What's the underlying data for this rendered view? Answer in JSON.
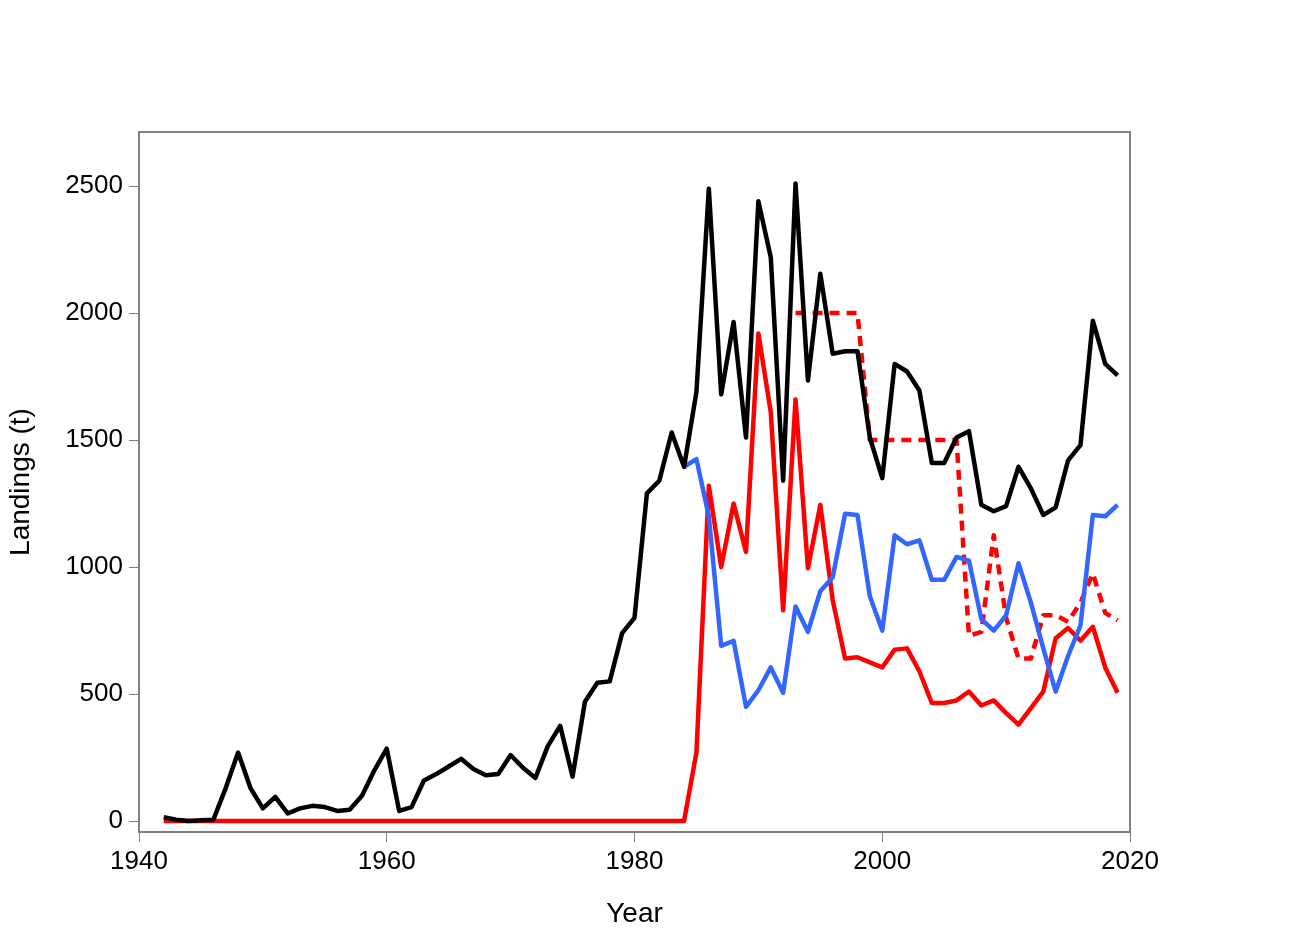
{
  "chart_data": {
    "type": "line",
    "xlabel": "Year",
    "ylabel": "Landings (t)",
    "xlim": [
      1940,
      2020
    ],
    "xticks": [
      1940,
      1960,
      1980,
      2000,
      2020
    ],
    "ylim": [
      -43,
      2713
    ],
    "yticks": [
      0,
      500,
      1000,
      1500,
      2000,
      2500
    ],
    "grid": false,
    "legend": false,
    "marker": "none",
    "x": [
      1942,
      1943,
      1944,
      1945,
      1946,
      1947,
      1948,
      1949,
      1950,
      1951,
      1952,
      1953,
      1954,
      1955,
      1956,
      1957,
      1958,
      1959,
      1960,
      1961,
      1962,
      1963,
      1964,
      1965,
      1966,
      1967,
      1968,
      1969,
      1970,
      1971,
      1972,
      1973,
      1974,
      1975,
      1976,
      1977,
      1978,
      1979,
      1980,
      1981,
      1982,
      1983,
      1984,
      1985,
      1986,
      1987,
      1988,
      1989,
      1990,
      1991,
      1992,
      1993,
      1994,
      1995,
      1996,
      1997,
      1998,
      1999,
      2000,
      2001,
      2002,
      2003,
      2004,
      2005,
      2006,
      2007,
      2008,
      2009,
      2010,
      2011,
      2012,
      2013,
      2014,
      2015,
      2016,
      2017,
      2018,
      2019
    ],
    "series": [
      {
        "color": "#000000",
        "line_style": "solid",
        "values": [
          15,
          5,
          0,
          3,
          5,
          130,
          270,
          130,
          50,
          95,
          30,
          50,
          60,
          55,
          40,
          45,
          100,
          200,
          285,
          40,
          55,
          160,
          185,
          215,
          245,
          205,
          180,
          185,
          260,
          210,
          170,
          295,
          375,
          175,
          470,
          545,
          550,
          740,
          800,
          1290,
          1340,
          1530,
          1395,
          1690,
          2490,
          1680,
          1965,
          1510,
          2440,
          2220,
          1340,
          2510,
          1735,
          2155,
          1840,
          1850,
          1850,
          1510,
          1350,
          1800,
          1770,
          1695,
          1410,
          1410,
          1510,
          1535,
          1245,
          1220,
          1240,
          1395,
          1310,
          1205,
          1235,
          1420,
          1480,
          1970,
          1800,
          1755
        ]
      },
      {
        "color": "#3366ff",
        "line_style": "solid",
        "x": [
          1984,
          1985,
          1986,
          1987,
          1988,
          1989,
          1990,
          1991,
          1992,
          1993,
          1994,
          1995,
          1996,
          1997,
          1998,
          1999,
          2000,
          2001,
          2002,
          2003,
          2004,
          2005,
          2006,
          2007,
          2008,
          2009,
          2010,
          2011,
          2012,
          2013,
          2014,
          2015,
          2016,
          2017,
          2018,
          2019
        ],
        "values": [
          1395,
          1425,
          1200,
          690,
          710,
          450,
          515,
          605,
          505,
          845,
          745,
          905,
          960,
          1210,
          1205,
          885,
          750,
          1125,
          1090,
          1105,
          950,
          950,
          1040,
          1025,
          795,
          750,
          810,
          1015,
          860,
          680,
          510,
          650,
          770,
          1205,
          1200,
          1245
        ]
      },
      {
        "color": "#ff0000",
        "line_style": "solid",
        "values": [
          0,
          0,
          0,
          0,
          0,
          0,
          0,
          0,
          0,
          0,
          0,
          0,
          0,
          0,
          0,
          0,
          0,
          0,
          0,
          0,
          0,
          0,
          0,
          0,
          0,
          0,
          0,
          0,
          0,
          0,
          0,
          0,
          0,
          0,
          0,
          0,
          0,
          0,
          0,
          0,
          0,
          0,
          0,
          270,
          1320,
          1000,
          1250,
          1060,
          1920,
          1610,
          830,
          1660,
          995,
          1245,
          870,
          640,
          645,
          625,
          605,
          675,
          680,
          590,
          465,
          465,
          475,
          510,
          455,
          475,
          425,
          380,
          445,
          510,
          720,
          760,
          710,
          765,
          605,
          505
        ]
      },
      {
        "color": "#ff0000",
        "line_style": "dashed",
        "x": [
          1993,
          1994,
          1995,
          1996,
          1997,
          1998,
          1999,
          2000,
          2001,
          2002,
          2003,
          2004,
          2005,
          2006,
          2007,
          2008,
          2009,
          2010,
          2011,
          2012,
          2013,
          2014,
          2015,
          2016,
          2017,
          2018,
          2019
        ],
        "values": [
          2000,
          2000,
          2000,
          2000,
          2000,
          2000,
          1500,
          1500,
          1500,
          1500,
          1500,
          1500,
          1500,
          1500,
          730,
          745,
          1125,
          800,
          640,
          640,
          810,
          810,
          785,
          860,
          975,
          820,
          790
        ]
      }
    ]
  }
}
